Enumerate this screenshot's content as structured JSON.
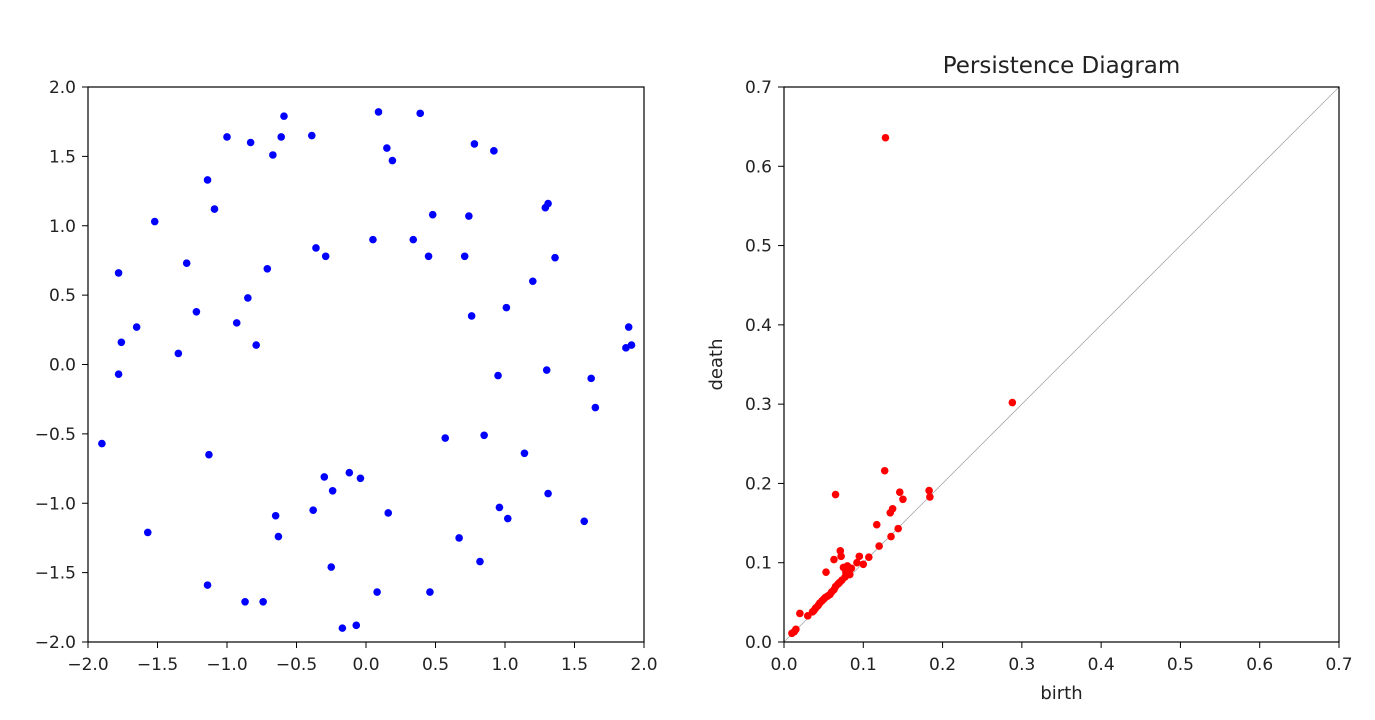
{
  "colors": {
    "scatter_points": "#0000ff",
    "persistence_points": "#ff0000",
    "diagonal": "#aaaaaa",
    "axes": "#000000"
  },
  "chart_data": [
    {
      "type": "scatter",
      "title": "",
      "xlabel": "",
      "ylabel": "",
      "xlim": [
        -2.0,
        2.0
      ],
      "ylim": [
        -2.0,
        2.0
      ],
      "grid": false,
      "xticks": [
        "−2.0",
        "−1.5",
        "−1.0",
        "−0.5",
        "0.0",
        "0.5",
        "1.0",
        "1.5",
        "2.0"
      ],
      "yticks": [
        "−2.0",
        "−1.5",
        "−1.0",
        "−0.5",
        "0.0",
        "0.5",
        "1.0",
        "1.5",
        "2.0"
      ],
      "xtick_values": [
        -2.0,
        -1.5,
        -1.0,
        -0.5,
        0.0,
        0.5,
        1.0,
        1.5,
        2.0
      ],
      "ytick_values": [
        -2.0,
        -1.5,
        -1.0,
        -0.5,
        0.0,
        0.5,
        1.0,
        1.5,
        2.0
      ],
      "points": [
        [
          -1.9,
          -0.57
        ],
        [
          -1.78,
          0.66
        ],
        [
          -1.78,
          -0.07
        ],
        [
          -1.76,
          0.16
        ],
        [
          -1.65,
          0.27
        ],
        [
          -1.57,
          -1.21
        ],
        [
          -1.52,
          1.03
        ],
        [
          -1.35,
          0.08
        ],
        [
          -1.29,
          0.73
        ],
        [
          -1.22,
          0.38
        ],
        [
          -1.14,
          1.33
        ],
        [
          -1.13,
          -0.65
        ],
        [
          -1.14,
          -1.59
        ],
        [
          -1.09,
          1.12
        ],
        [
          -1.0,
          1.64
        ],
        [
          -0.93,
          0.3
        ],
        [
          -0.87,
          -1.71
        ],
        [
          -0.85,
          0.48
        ],
        [
          -0.83,
          1.6
        ],
        [
          -0.79,
          0.14
        ],
        [
          -0.74,
          -1.71
        ],
        [
          -0.71,
          0.69
        ],
        [
          -0.67,
          1.51
        ],
        [
          -0.65,
          -1.09
        ],
        [
          -0.63,
          -1.24
        ],
        [
          -0.61,
          1.64
        ],
        [
          -0.59,
          1.79
        ],
        [
          -0.39,
          1.65
        ],
        [
          -0.38,
          -1.05
        ],
        [
          -0.36,
          0.84
        ],
        [
          -0.3,
          -0.81
        ],
        [
          -0.29,
          0.78
        ],
        [
          -0.25,
          -1.46
        ],
        [
          -0.24,
          -0.91
        ],
        [
          -0.17,
          -1.9
        ],
        [
          -0.12,
          -0.78
        ],
        [
          -0.07,
          -1.88
        ],
        [
          -0.04,
          -0.82
        ],
        [
          0.05,
          0.9
        ],
        [
          0.08,
          -1.64
        ],
        [
          0.09,
          1.82
        ],
        [
          0.15,
          1.56
        ],
        [
          0.16,
          -1.07
        ],
        [
          0.19,
          1.47
        ],
        [
          0.34,
          0.9
        ],
        [
          0.39,
          1.81
        ],
        [
          0.45,
          0.78
        ],
        [
          0.46,
          -1.64
        ],
        [
          0.48,
          1.08
        ],
        [
          0.57,
          -0.53
        ],
        [
          0.67,
          -1.25
        ],
        [
          0.71,
          0.78
        ],
        [
          0.74,
          1.07
        ],
        [
          0.76,
          0.35
        ],
        [
          0.78,
          1.59
        ],
        [
          0.82,
          -1.42
        ],
        [
          0.85,
          -0.51
        ],
        [
          0.92,
          1.54
        ],
        [
          0.95,
          -0.08
        ],
        [
          0.96,
          -1.03
        ],
        [
          1.01,
          0.41
        ],
        [
          1.02,
          -1.11
        ],
        [
          1.14,
          -0.64
        ],
        [
          1.2,
          0.6
        ],
        [
          1.29,
          1.13
        ],
        [
          1.3,
          -0.04
        ],
        [
          1.31,
          1.16
        ],
        [
          1.31,
          -0.93
        ],
        [
          1.36,
          0.77
        ],
        [
          1.57,
          -1.13
        ],
        [
          1.62,
          -0.1
        ],
        [
          1.65,
          -0.31
        ],
        [
          1.87,
          0.12
        ],
        [
          1.89,
          0.27
        ],
        [
          1.91,
          0.14
        ]
      ]
    },
    {
      "type": "scatter",
      "title": "Persistence Diagram",
      "xlabel": "birth",
      "ylabel": "death",
      "xlim": [
        0.0,
        0.7
      ],
      "ylim": [
        0.0,
        0.7
      ],
      "grid": false,
      "diagonal": true,
      "xticks": [
        "0.0",
        "0.1",
        "0.2",
        "0.3",
        "0.4",
        "0.5",
        "0.6",
        "0.7"
      ],
      "yticks": [
        "0.0",
        "0.1",
        "0.2",
        "0.3",
        "0.4",
        "0.5",
        "0.6",
        "0.7"
      ],
      "xtick_values": [
        0.0,
        0.1,
        0.2,
        0.3,
        0.4,
        0.5,
        0.6,
        0.7
      ],
      "ytick_values": [
        0.0,
        0.1,
        0.2,
        0.3,
        0.4,
        0.5,
        0.6,
        0.7
      ],
      "points": [
        [
          0.128,
          0.636
        ],
        [
          0.288,
          0.302
        ],
        [
          0.127,
          0.216
        ],
        [
          0.065,
          0.186
        ],
        [
          0.183,
          0.191
        ],
        [
          0.146,
          0.189
        ],
        [
          0.184,
          0.183
        ],
        [
          0.15,
          0.18
        ],
        [
          0.137,
          0.168
        ],
        [
          0.134,
          0.163
        ],
        [
          0.117,
          0.148
        ],
        [
          0.144,
          0.143
        ],
        [
          0.135,
          0.133
        ],
        [
          0.12,
          0.121
        ],
        [
          0.071,
          0.115
        ],
        [
          0.072,
          0.108
        ],
        [
          0.063,
          0.104
        ],
        [
          0.095,
          0.108
        ],
        [
          0.107,
          0.107
        ],
        [
          0.092,
          0.1
        ],
        [
          0.1,
          0.098
        ],
        [
          0.08,
          0.096
        ],
        [
          0.075,
          0.094
        ],
        [
          0.085,
          0.093
        ],
        [
          0.078,
          0.088
        ],
        [
          0.053,
          0.088
        ],
        [
          0.083,
          0.085
        ],
        [
          0.077,
          0.082
        ],
        [
          0.073,
          0.078
        ],
        [
          0.07,
          0.075
        ],
        [
          0.068,
          0.073
        ],
        [
          0.065,
          0.07
        ],
        [
          0.063,
          0.066
        ],
        [
          0.06,
          0.063
        ],
        [
          0.058,
          0.06
        ],
        [
          0.055,
          0.058
        ],
        [
          0.052,
          0.056
        ],
        [
          0.05,
          0.054
        ],
        [
          0.048,
          0.052
        ],
        [
          0.045,
          0.049
        ],
        [
          0.043,
          0.046
        ],
        [
          0.04,
          0.043
        ],
        [
          0.038,
          0.04
        ],
        [
          0.036,
          0.038
        ],
        [
          0.02,
          0.036
        ],
        [
          0.03,
          0.033
        ],
        [
          0.015,
          0.016
        ],
        [
          0.013,
          0.013
        ],
        [
          0.01,
          0.011
        ]
      ]
    }
  ]
}
